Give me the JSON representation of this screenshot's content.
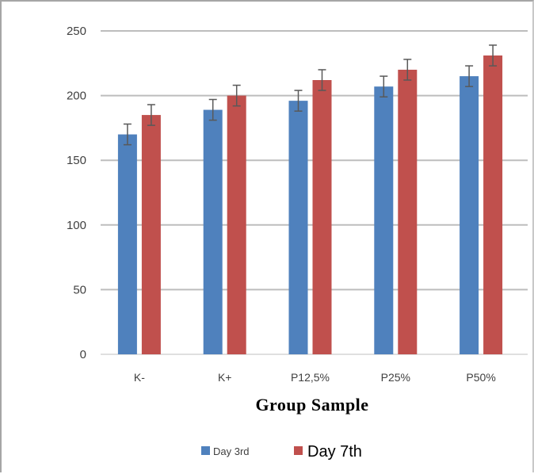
{
  "chart_data": {
    "type": "bar",
    "categories": [
      "K-",
      "K+",
      "P12,5%",
      "P25%",
      "P50%"
    ],
    "series": [
      {
        "name": "Day 3rd",
        "color": "#4f81bd",
        "values": [
          170,
          189,
          196,
          207,
          215
        ],
        "errors": [
          8,
          8,
          8,
          8,
          8
        ]
      },
      {
        "name": "Day 7th",
        "color": "#c0504d",
        "values": [
          185,
          200,
          212,
          220,
          231
        ],
        "errors": [
          8,
          8,
          8,
          8,
          8
        ]
      }
    ],
    "title": "",
    "xlabel": "Group Sample",
    "ylabel": "",
    "ylim": [
      0,
      250
    ],
    "yticks": [
      0,
      50,
      100,
      150,
      200,
      250
    ],
    "grid": true,
    "legend_position": "bottom"
  }
}
